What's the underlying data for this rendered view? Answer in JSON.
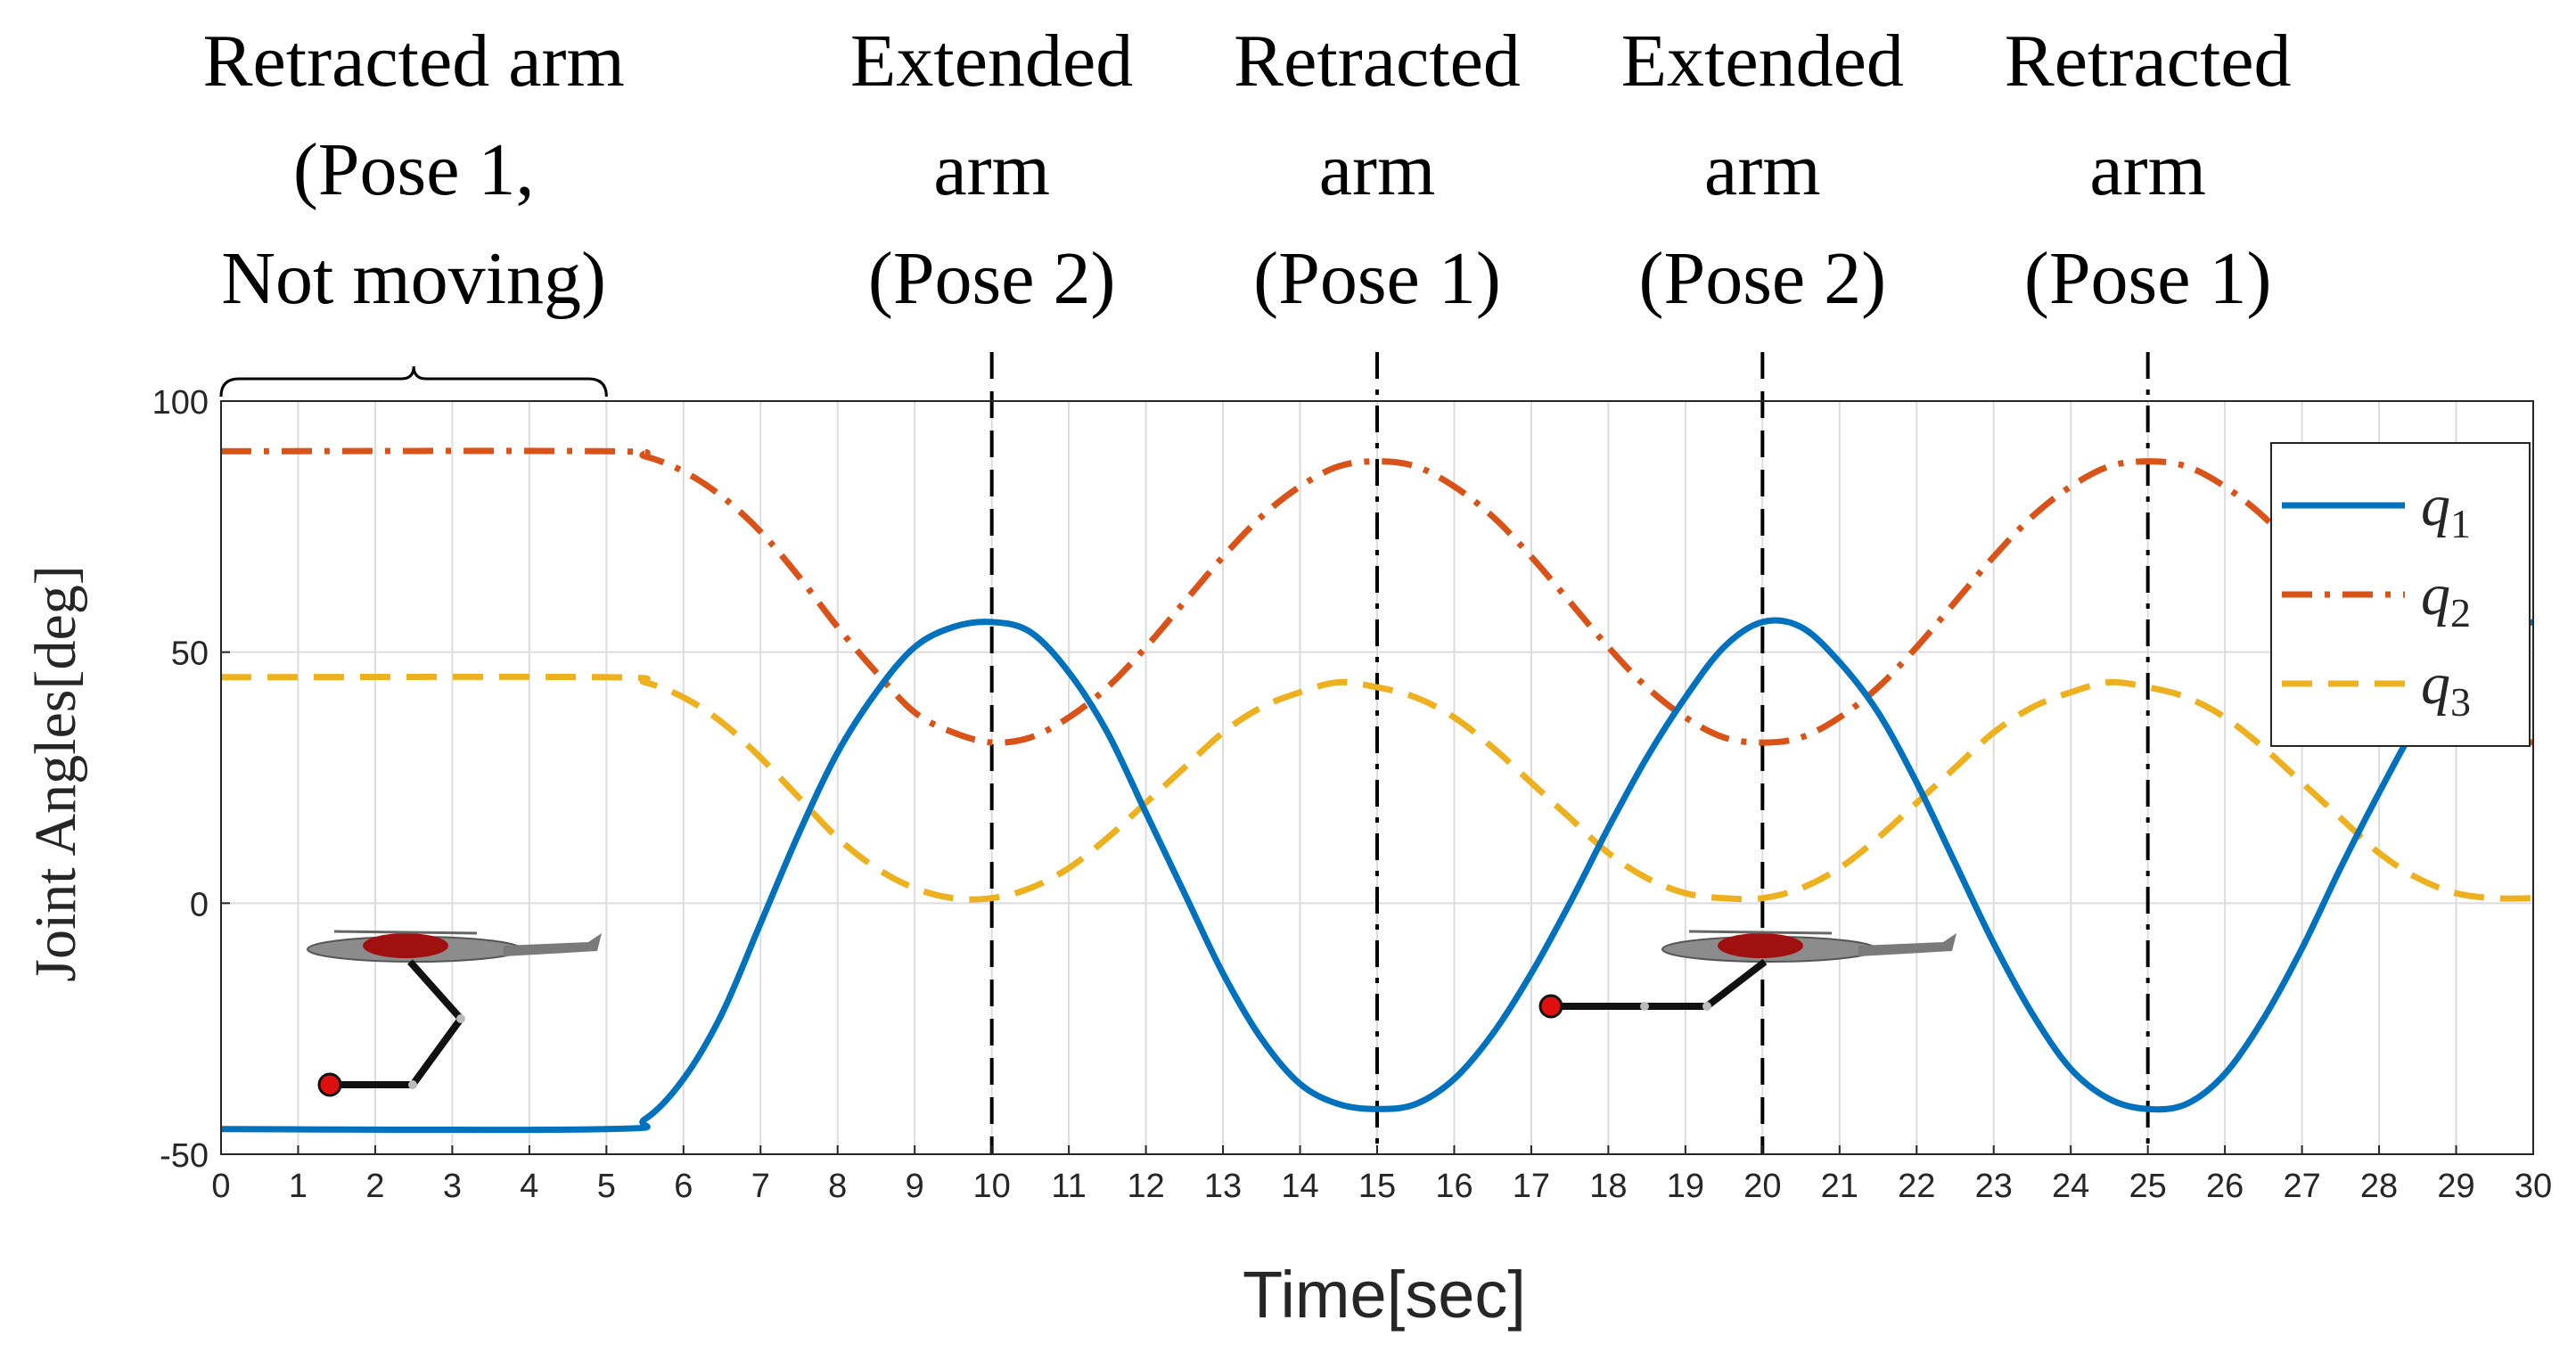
{
  "chart_data": {
    "type": "line",
    "title": "",
    "xlabel": "Time[sec]",
    "ylabel": "Joint  Angles[deg]",
    "xlim": [
      0,
      30
    ],
    "ylim": [
      -50,
      100
    ],
    "xticks": [
      "0",
      "1",
      "2",
      "3",
      "4",
      "5",
      "6",
      "7",
      "8",
      "9",
      "10",
      "11",
      "12",
      "13",
      "14",
      "15",
      "16",
      "17",
      "18",
      "19",
      "20",
      "21",
      "22",
      "23",
      "24",
      "25",
      "26",
      "27",
      "28",
      "29",
      "30"
    ],
    "yticks": [
      "100",
      "50",
      "0",
      "-50"
    ],
    "grid": true,
    "legend_position": "top-right",
    "series": [
      {
        "name": "q1",
        "sub": "1",
        "color": "#0072BD",
        "style": "solid",
        "x": [
          0,
          5,
          5.5,
          6,
          6.5,
          7,
          7.5,
          8,
          8.5,
          9,
          9.5,
          10,
          10.5,
          11,
          11.5,
          12,
          12.5,
          13,
          13.5,
          14,
          14.5,
          15,
          15.5,
          16,
          16.5,
          17,
          17.5,
          18,
          18.5,
          19,
          19.5,
          20,
          20.5,
          21,
          21.5,
          22,
          22.5,
          23,
          23.5,
          24,
          24.5,
          25,
          25.5,
          26,
          26.5,
          27,
          27.5,
          28,
          28.5,
          29,
          29.5,
          30
        ],
        "values": [
          -45,
          -45,
          -43,
          -35,
          -22,
          -4,
          14,
          30,
          42,
          51,
          55,
          56,
          54,
          46,
          34,
          18,
          2,
          -14,
          -27,
          -36,
          -40,
          -41,
          -40,
          -35,
          -26,
          -14,
          0,
          15,
          29,
          41,
          51,
          56,
          55,
          48,
          38,
          24,
          8,
          -8,
          -22,
          -33,
          -39,
          -41,
          -40,
          -34,
          -23,
          -9,
          7,
          22,
          36,
          47,
          54,
          56
        ]
      },
      {
        "name": "q2",
        "sub": "2",
        "color": "#D95319",
        "style": "dashdot",
        "x": [
          0,
          5,
          5.5,
          6,
          6.5,
          7,
          7.5,
          8,
          8.5,
          9,
          9.5,
          10,
          10.5,
          11,
          11.5,
          12,
          12.5,
          13,
          13.5,
          14,
          14.5,
          15,
          15.5,
          16,
          16.5,
          17,
          17.5,
          18,
          18.5,
          19,
          19.5,
          20,
          20.5,
          21,
          21.5,
          22,
          22.5,
          23,
          23.5,
          24,
          24.5,
          25,
          25.5,
          26,
          26.5,
          27,
          27.5,
          28,
          28.5,
          29,
          29.5,
          30
        ],
        "values": [
          90,
          90,
          89,
          86,
          81,
          74,
          65,
          55,
          46,
          38,
          34,
          32,
          33,
          37,
          43,
          51,
          60,
          69,
          77,
          83,
          87,
          88,
          87,
          83,
          77,
          69,
          60,
          51,
          43,
          37,
          33,
          32,
          33,
          37,
          43,
          51,
          60,
          69,
          77,
          83,
          87,
          88,
          87,
          83,
          77,
          69,
          60,
          51,
          43,
          37,
          33,
          32
        ]
      },
      {
        "name": "q3",
        "sub": "3",
        "color": "#EDB120",
        "style": "dashed",
        "x": [
          0,
          5,
          5.5,
          6,
          6.5,
          7,
          7.5,
          8,
          8.5,
          9,
          9.5,
          10,
          10.5,
          11,
          11.5,
          12,
          12.5,
          13,
          13.5,
          14,
          14.5,
          15,
          15.5,
          16,
          16.5,
          17,
          17.5,
          18,
          18.5,
          19,
          19.5,
          20,
          20.5,
          21,
          21.5,
          22,
          22.5,
          23,
          23.5,
          24,
          24.5,
          25,
          25.5,
          26,
          26.5,
          27,
          27.5,
          28,
          28.5,
          29,
          29.5,
          30
        ],
        "values": [
          45,
          45,
          44,
          41,
          36,
          29,
          21,
          13,
          7,
          3,
          1,
          1,
          3,
          7,
          13,
          20,
          27,
          34,
          39,
          42,
          44,
          43,
          41,
          37,
          31,
          24,
          17,
          10,
          5,
          2,
          1,
          1,
          3,
          7,
          13,
          20,
          27,
          34,
          39,
          42,
          44,
          43,
          41,
          37,
          31,
          24,
          17,
          10,
          5,
          2,
          1,
          1
        ]
      }
    ],
    "vlines": [
      {
        "x": 10,
        "style": "dashed"
      },
      {
        "x": 15,
        "style": "dashdot"
      },
      {
        "x": 20,
        "style": "dashed"
      },
      {
        "x": 25,
        "style": "dashdot"
      }
    ],
    "annotations": [
      {
        "x": 2.5,
        "lines": [
          "Retracted arm",
          "(Pose 1,",
          "Not moving)"
        ],
        "brace": [
          0,
          5
        ]
      },
      {
        "x": 10,
        "lines": [
          "Extended",
          "arm",
          "(Pose 2)"
        ]
      },
      {
        "x": 15,
        "lines": [
          "Retracted",
          "arm",
          "(Pose 1)"
        ]
      },
      {
        "x": 20,
        "lines": [
          "Extended",
          "arm",
          "(Pose 2)"
        ]
      },
      {
        "x": 25,
        "lines": [
          "Retracted",
          "arm",
          "(Pose 1)"
        ]
      }
    ],
    "insets": [
      {
        "name": "retracted-arm-drone",
        "x": 2.5,
        "y": -10
      },
      {
        "name": "extended-arm-drone",
        "x": 20,
        "y": -10
      }
    ]
  }
}
